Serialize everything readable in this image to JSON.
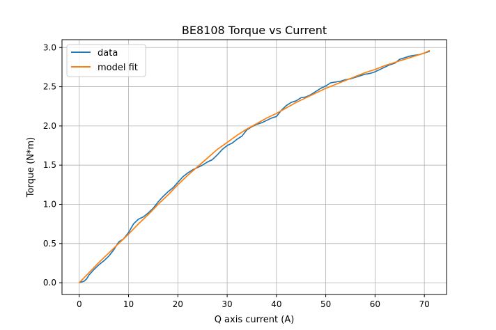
{
  "chart_data": {
    "type": "line",
    "title": "BE8108 Torque vs Current",
    "xlabel": "Q axis current (A)",
    "ylabel": "Torque (N*m)",
    "xlim": [
      -3.5,
      74.5
    ],
    "ylim": [
      -0.15,
      3.1
    ],
    "xticks": [
      0,
      10,
      20,
      30,
      40,
      50,
      60,
      70
    ],
    "xtick_labels": [
      "0",
      "10",
      "20",
      "30",
      "40",
      "50",
      "60",
      "70"
    ],
    "yticks": [
      0.0,
      0.5,
      1.0,
      1.5,
      2.0,
      2.5,
      3.0
    ],
    "ytick_labels": [
      "0.0",
      "0.5",
      "1.0",
      "1.5",
      "2.0",
      "2.5",
      "3.0"
    ],
    "grid": true,
    "legend_position": "top-left",
    "series": [
      {
        "name": "data",
        "color": "#1f77b4",
        "x": [
          0,
          1,
          1.5,
          2,
          3,
          4,
          5,
          6,
          7,
          8,
          9,
          10,
          11,
          12,
          13,
          14,
          15,
          16,
          17,
          18,
          19,
          20,
          21,
          22,
          23,
          24,
          25,
          26,
          27,
          28,
          29,
          30,
          31,
          32,
          33,
          34,
          35,
          36,
          37,
          38,
          39,
          40,
          41,
          42,
          43,
          44,
          45,
          46,
          47,
          48,
          49,
          50,
          51,
          52,
          53,
          54,
          55,
          56,
          57,
          58,
          59,
          60,
          61,
          62,
          63,
          64,
          65,
          66,
          67,
          68,
          69,
          70,
          71
        ],
        "y": [
          0.0,
          0.02,
          0.05,
          0.1,
          0.17,
          0.23,
          0.28,
          0.34,
          0.42,
          0.52,
          0.56,
          0.64,
          0.75,
          0.81,
          0.84,
          0.89,
          0.95,
          1.03,
          1.1,
          1.16,
          1.21,
          1.28,
          1.35,
          1.4,
          1.44,
          1.47,
          1.5,
          1.54,
          1.57,
          1.63,
          1.7,
          1.75,
          1.78,
          1.83,
          1.87,
          1.95,
          1.99,
          2.02,
          2.04,
          2.07,
          2.1,
          2.12,
          2.2,
          2.26,
          2.3,
          2.32,
          2.36,
          2.37,
          2.4,
          2.44,
          2.48,
          2.51,
          2.55,
          2.56,
          2.57,
          2.59,
          2.6,
          2.62,
          2.64,
          2.66,
          2.67,
          2.69,
          2.72,
          2.75,
          2.78,
          2.8,
          2.85,
          2.87,
          2.89,
          2.9,
          2.91,
          2.93,
          2.95
        ]
      },
      {
        "name": "model fit",
        "color": "#ff7f0e",
        "x": [
          0,
          2,
          4,
          6,
          8,
          10,
          12,
          14,
          16,
          18,
          20,
          22,
          24,
          26,
          28,
          30,
          32,
          34,
          36,
          38,
          40,
          42,
          44,
          46,
          48,
          50,
          52,
          54,
          56,
          58,
          60,
          62,
          64,
          66,
          68,
          70,
          71
        ],
        "y": [
          0.0,
          0.13,
          0.26,
          0.38,
          0.5,
          0.62,
          0.75,
          0.87,
          1.0,
          1.12,
          1.25,
          1.37,
          1.48,
          1.59,
          1.7,
          1.79,
          1.88,
          1.96,
          2.03,
          2.1,
          2.16,
          2.23,
          2.3,
          2.36,
          2.42,
          2.48,
          2.53,
          2.58,
          2.63,
          2.68,
          2.72,
          2.77,
          2.81,
          2.85,
          2.89,
          2.93,
          2.96
        ]
      }
    ]
  }
}
